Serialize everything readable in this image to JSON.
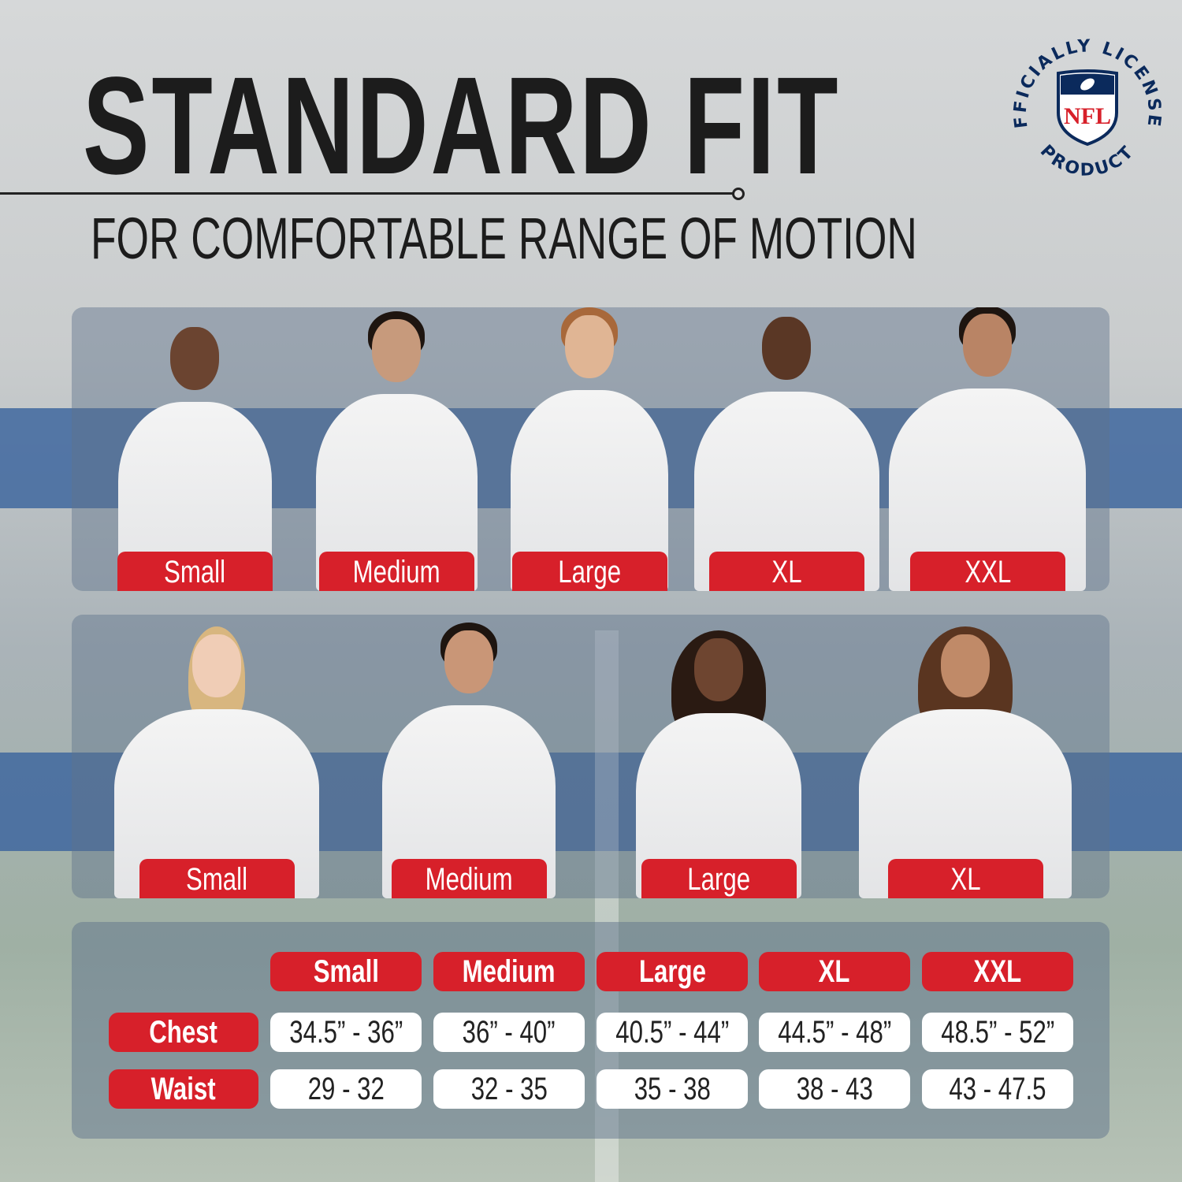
{
  "header": {
    "title": "STANDARD FIT",
    "subtitle": "FOR COMFORTABLE RANGE OF MOTION"
  },
  "badge": {
    "text_top": "OFFICIALLY LICENSED",
    "text_bottom": "PRODUCT",
    "logo": "NFL",
    "colors": {
      "navy": "#0b2a5c",
      "red": "#d7202a"
    }
  },
  "colors": {
    "accent_red": "#d7202a",
    "stripe_blue": "#3f679f"
  },
  "men": {
    "models": [
      {
        "label": "Small",
        "skin": "#6b4430",
        "hair": "none"
      },
      {
        "label": "Medium",
        "skin": "#c79a7c",
        "hair": "dark"
      },
      {
        "label": "Large",
        "skin": "#e0b594",
        "hair": "ginger"
      },
      {
        "label": "XL",
        "skin": "#5a3725",
        "hair": "none"
      },
      {
        "label": "XXL",
        "skin": "#b98465",
        "hair": "dark"
      }
    ]
  },
  "women": {
    "models": [
      {
        "label": "Small",
        "skin": "#f0cdb6",
        "hair": "blonde"
      },
      {
        "label": "Medium",
        "skin": "#c99677",
        "hair": "dark"
      },
      {
        "label": "Large",
        "skin": "#6e4530",
        "hair": "curly"
      },
      {
        "label": "XL",
        "skin": "#c08a68",
        "hair": "curly-brown"
      }
    ]
  },
  "table": {
    "columns": [
      "Small",
      "Medium",
      "Large",
      "XL",
      "XXL"
    ],
    "rows": [
      {
        "label": "Chest",
        "values": [
          "34.5” - 36”",
          "36” - 40”",
          "40.5” - 44”",
          "44.5” - 48”",
          "48.5” - 52”"
        ]
      },
      {
        "label": "Waist",
        "values": [
          "29 - 32",
          "32 - 35",
          "35 - 38",
          "38 - 43",
          "43 - 47.5"
        ]
      }
    ]
  }
}
